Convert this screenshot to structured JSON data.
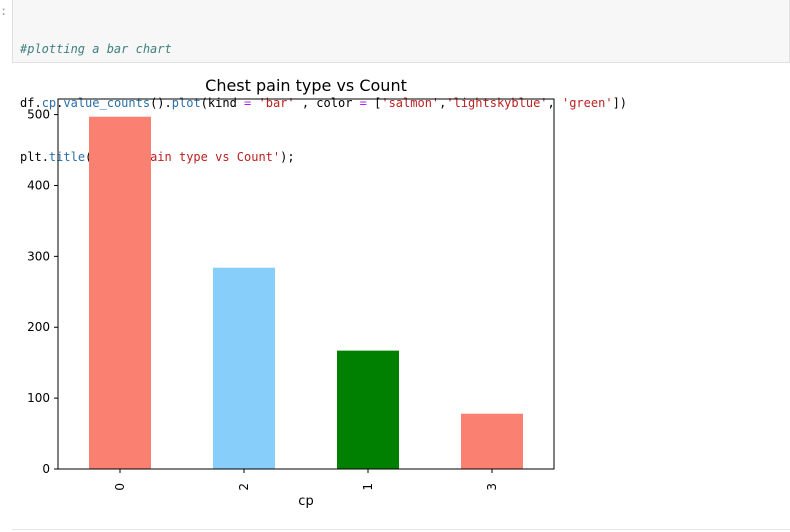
{
  "cell": {
    "prompt": ":",
    "code": {
      "comment": "#plotting a bar chart",
      "line2": {
        "df": "df",
        "dot1": ".",
        "cp": "cp",
        "dot2": ".",
        "value_counts": "value_counts",
        "paren1": "().",
        "plot": "plot",
        "open": "(kind ",
        "eq1": "=",
        "sp1": " ",
        "bar": "'bar'",
        "mid": " , color ",
        "eq2": "=",
        "sp2": " [",
        "salmon": "'salmon'",
        "comma1": ",",
        "lightskyblue": "'lightskyblue'",
        "comma2": ", ",
        "green": "'green'",
        "close": "])"
      },
      "line3": {
        "plt": "plt",
        "dot": ".",
        "title_fn": "title",
        "open": "(",
        "title_str": "'Chest pain type vs Count'",
        "close": ");"
      }
    }
  },
  "chart_data": {
    "type": "bar",
    "title": "Chest pain type vs Count",
    "xlabel": "cp",
    "ylabel": "",
    "categories": [
      "0",
      "2",
      "1",
      "3"
    ],
    "values": [
      497,
      284,
      167,
      78
    ],
    "colors": [
      "#fa8072",
      "#87cefa",
      "#008000",
      "#fa8072"
    ],
    "ylim": [
      0,
      522
    ],
    "yticks": [
      0,
      100,
      200,
      300,
      400,
      500
    ],
    "grid": false,
    "legend": false
  }
}
